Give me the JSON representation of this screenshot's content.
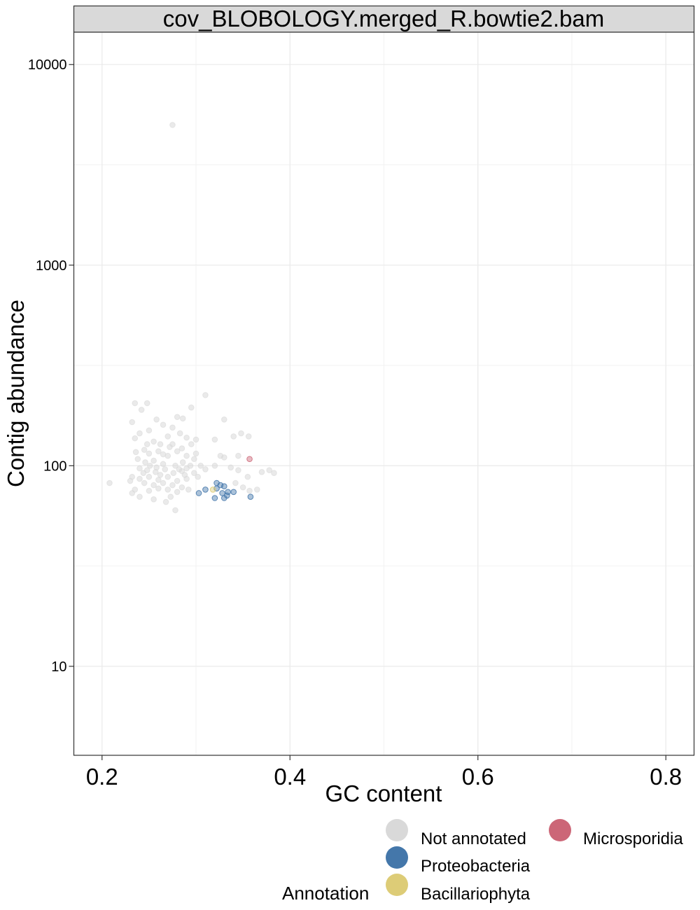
{
  "chart_data": {
    "type": "scatter",
    "panel_title": "cov_BLOBOLOGY.merged_R.bowtie2.bam",
    "xlabel": "GC content",
    "ylabel": "Contig abundance",
    "xlim": [
      0.17,
      0.83
    ],
    "ylim": [
      3.6,
      14500
    ],
    "y_scale": "log10",
    "x_ticks": [
      0.2,
      0.4,
      0.6,
      0.8
    ],
    "x_tick_labels": [
      "0.2",
      "0.4",
      "0.6",
      "0.8"
    ],
    "y_ticks": [
      10,
      100,
      1000,
      10000
    ],
    "y_tick_labels": [
      "10",
      "100",
      "1000",
      "10000"
    ],
    "grid": true,
    "legend_position": "bottom-right",
    "legend": {
      "title": "Annotation",
      "entries": [
        {
          "label": "Not annotated",
          "color": "#d9d9d9"
        },
        {
          "label": "Proteobacteria",
          "color": "#4477aa"
        },
        {
          "label": "Bacillariophyta",
          "color": "#ddcc77"
        },
        {
          "label": "Microsporidia",
          "color": "#cc6677"
        }
      ]
    },
    "series": [
      {
        "name": "Not annotated",
        "color": "#d9d9d9",
        "points": [
          [
            0.275,
            5000
          ],
          [
            0.31,
            225
          ],
          [
            0.295,
            195
          ],
          [
            0.235,
            205
          ],
          [
            0.248,
            205
          ],
          [
            0.242,
            190
          ],
          [
            0.232,
            165
          ],
          [
            0.258,
            170
          ],
          [
            0.28,
            175
          ],
          [
            0.286,
            172
          ],
          [
            0.265,
            160
          ],
          [
            0.275,
            155
          ],
          [
            0.25,
            150
          ],
          [
            0.24,
            145
          ],
          [
            0.27,
            140
          ],
          [
            0.283,
            145
          ],
          [
            0.29,
            138
          ],
          [
            0.3,
            135
          ],
          [
            0.32,
            135
          ],
          [
            0.33,
            170
          ],
          [
            0.34,
            140
          ],
          [
            0.348,
            145
          ],
          [
            0.356,
            140
          ],
          [
            0.235,
            137
          ],
          [
            0.255,
            132
          ],
          [
            0.262,
            128
          ],
          [
            0.275,
            128
          ],
          [
            0.285,
            122
          ],
          [
            0.295,
            128
          ],
          [
            0.245,
            120
          ],
          [
            0.25,
            115
          ],
          [
            0.26,
            118
          ],
          [
            0.27,
            112
          ],
          [
            0.28,
            118
          ],
          [
            0.29,
            112
          ],
          [
            0.3,
            115
          ],
          [
            0.238,
            108
          ],
          [
            0.246,
            104
          ],
          [
            0.255,
            106
          ],
          [
            0.265,
            102
          ],
          [
            0.278,
            100
          ],
          [
            0.286,
            104
          ],
          [
            0.294,
            100
          ],
          [
            0.305,
            100
          ],
          [
            0.31,
            96
          ],
          [
            0.24,
            97
          ],
          [
            0.248,
            95
          ],
          [
            0.257,
            93
          ],
          [
            0.267,
            96
          ],
          [
            0.276,
            92
          ],
          [
            0.285,
            94
          ],
          [
            0.298,
            92
          ],
          [
            0.232,
            88
          ],
          [
            0.24,
            86
          ],
          [
            0.25,
            88
          ],
          [
            0.26,
            85
          ],
          [
            0.27,
            88
          ],
          [
            0.28,
            84
          ],
          [
            0.29,
            86
          ],
          [
            0.23,
            84
          ],
          [
            0.245,
            82
          ],
          [
            0.255,
            80
          ],
          [
            0.265,
            82
          ],
          [
            0.275,
            80
          ],
          [
            0.285,
            78
          ],
          [
            0.235,
            76
          ],
          [
            0.25,
            75
          ],
          [
            0.26,
            77
          ],
          [
            0.27,
            76
          ],
          [
            0.28,
            74
          ],
          [
            0.292,
            76
          ],
          [
            0.232,
            73
          ],
          [
            0.24,
            70
          ],
          [
            0.255,
            68
          ],
          [
            0.268,
            66
          ],
          [
            0.278,
            60
          ],
          [
            0.208,
            82
          ],
          [
            0.29,
            97
          ],
          [
            0.32,
            100
          ],
          [
            0.33,
            110
          ],
          [
            0.337,
            98
          ],
          [
            0.345,
            95
          ],
          [
            0.342,
            82
          ],
          [
            0.35,
            78
          ],
          [
            0.357,
            75
          ],
          [
            0.365,
            76
          ],
          [
            0.355,
            88
          ],
          [
            0.37,
            93
          ],
          [
            0.378,
            95
          ],
          [
            0.383,
            92
          ],
          [
            0.345,
            112
          ],
          [
            0.326,
            112
          ],
          [
            0.265,
            114
          ],
          [
            0.248,
            128
          ],
          [
            0.272,
            124
          ],
          [
            0.258,
            98
          ],
          [
            0.262,
            90
          ],
          [
            0.288,
            90
          ],
          [
            0.302,
            88
          ],
          [
            0.273,
            70
          ],
          [
            0.244,
            92
          ],
          [
            0.251,
            100
          ],
          [
            0.282,
            96
          ],
          [
            0.236,
            117
          ],
          [
            0.298,
            108
          ]
        ]
      },
      {
        "name": "Proteobacteria",
        "color": "#4477aa",
        "points": [
          [
            0.303,
            73
          ],
          [
            0.31,
            76
          ],
          [
            0.322,
            82
          ],
          [
            0.326,
            80
          ],
          [
            0.33,
            79
          ],
          [
            0.322,
            77
          ],
          [
            0.328,
            73
          ],
          [
            0.334,
            74
          ],
          [
            0.34,
            74
          ],
          [
            0.333,
            71
          ],
          [
            0.33,
            69
          ],
          [
            0.32,
            69
          ],
          [
            0.358,
            70
          ]
        ]
      },
      {
        "name": "Bacillariophyta",
        "color": "#ddcc77",
        "points": [
          [
            0.318,
            76
          ]
        ]
      },
      {
        "name": "Microsporidia",
        "color": "#cc6677",
        "points": [
          [
            0.357,
            108
          ]
        ]
      }
    ]
  }
}
